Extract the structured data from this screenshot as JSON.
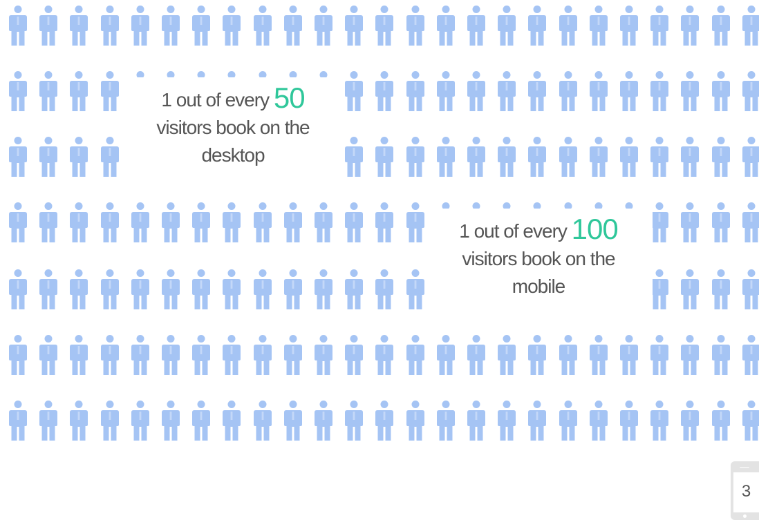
{
  "colors": {
    "person_icon": "#a5c4f4",
    "highlight_number": "#2fc79a",
    "body_text": "#555555",
    "badge_background": "#e3e3e3"
  },
  "icon_name": "person-icon",
  "callouts": {
    "desktop": {
      "prefix": "1 out of every ",
      "number": "50",
      "line2": "visitors book on the",
      "line3": "desktop"
    },
    "mobile": {
      "prefix": "1 out of every ",
      "number": "100",
      "line2": "visitors book on the",
      "line3": "mobile"
    }
  },
  "page_number": "3"
}
